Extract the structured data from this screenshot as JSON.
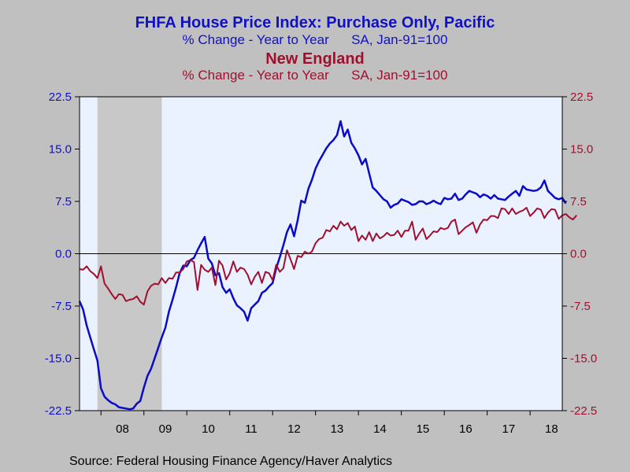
{
  "chart_data": {
    "type": "line",
    "title": "FHFA House Price Index: Purchase Only, Pacific",
    "subtitle": "% Change - Year to Year      SA, Jan-91=100",
    "title2": "New England",
    "subtitle2": "% Change - Year to Year      SA, Jan-91=100",
    "source": "Source:  Federal Housing Finance Agency/Haver Analytics",
    "ylim": [
      -22.5,
      22.5
    ],
    "yticks_left": [
      "22.5",
      "15.0",
      "7.5",
      "0.0",
      "-7.5",
      "-15.0",
      "-22.5"
    ],
    "yticks_right": [
      "22.5",
      "15.0",
      "7.5",
      "0.0",
      "-7.5",
      "-15.0",
      "-22.5"
    ],
    "ytick_values": [
      22.5,
      15.0,
      7.5,
      0.0,
      -7.5,
      -15.0,
      -22.5
    ],
    "xticks": [
      "08",
      "09",
      "10",
      "11",
      "12",
      "13",
      "14",
      "15",
      "16",
      "17",
      "18"
    ],
    "xlim": [
      "2007-07",
      "2018-10"
    ],
    "recession": [
      "2007-12",
      "2009-06"
    ],
    "grid": false,
    "colors": {
      "pacific": "#0a0ac8",
      "new_england": "#a0102e",
      "plot_bg": "#eaf2ff",
      "recession": "#c8c8c8"
    },
    "series": [
      {
        "name": "Pacific",
        "axis": "left",
        "start": "2007-07",
        "values": [
          -6.8,
          -8.0,
          -10.3,
          -12.0,
          -13.7,
          -15.3,
          -19.3,
          -20.5,
          -21.0,
          -21.4,
          -21.6,
          -22.0,
          -22.1,
          -22.2,
          -22.3,
          -22.2,
          -21.5,
          -21.1,
          -19.2,
          -17.5,
          -16.5,
          -15.0,
          -13.5,
          -12.0,
          -10.6,
          -8.3,
          -6.6,
          -4.8,
          -2.8,
          -1.7,
          -1.8,
          -0.9,
          -0.6,
          0.5,
          1.5,
          2.4,
          -0.7,
          -1.4,
          -3.1,
          -2.8,
          -4.8,
          -5.6,
          -5.1,
          -6.4,
          -7.4,
          -7.8,
          -8.3,
          -9.6,
          -7.8,
          -7.3,
          -6.8,
          -5.6,
          -5.3,
          -4.7,
          -4.2,
          -2.1,
          -0.5,
          1.2,
          3.1,
          4.2,
          2.5,
          4.8,
          7.6,
          7.3,
          9.3,
          10.6,
          12.2,
          13.3,
          14.2,
          15.1,
          15.8,
          16.3,
          17.0,
          19.0,
          16.8,
          17.8,
          15.9,
          15.1,
          14.1,
          12.8,
          13.6,
          11.5,
          9.5,
          9.0,
          8.4,
          7.8,
          7.5,
          6.6,
          7.0,
          7.2,
          7.8,
          7.6,
          7.4,
          7.0,
          7.1,
          7.5,
          7.5,
          7.1,
          7.3,
          7.6,
          7.3,
          7.1,
          8.0,
          7.8,
          7.9,
          8.6,
          7.7,
          7.9,
          8.5,
          9.0,
          8.8,
          8.6,
          8.1,
          8.5,
          8.3,
          7.9,
          8.4,
          7.9,
          7.8,
          7.7,
          8.2,
          8.6,
          9.0,
          8.3,
          9.7,
          9.2,
          9.1,
          9.0,
          9.1,
          9.5,
          10.5,
          9.0,
          8.5,
          8.0,
          7.8,
          8.0,
          7.2
        ]
      },
      {
        "name": "New England",
        "axis": "right",
        "start": "2007-07",
        "values": [
          -2.2,
          -2.3,
          -1.8,
          -2.5,
          -2.9,
          -3.5,
          -1.8,
          -4.3,
          -5.0,
          -5.8,
          -6.5,
          -5.8,
          -5.9,
          -6.8,
          -6.6,
          -6.5,
          -6.1,
          -6.9,
          -7.3,
          -5.4,
          -4.6,
          -4.3,
          -4.4,
          -3.5,
          -4.2,
          -3.5,
          -3.6,
          -2.7,
          -2.7,
          -2.2,
          -1.1,
          -0.9,
          -1.2,
          -5.2,
          -1.6,
          -2.3,
          -2.6,
          -2.0,
          -4.5,
          -1.0,
          -1.7,
          -3.7,
          -2.8,
          -1.1,
          -2.6,
          -2.0,
          -2.2,
          -3.0,
          -4.4,
          -3.3,
          -2.6,
          -4.2,
          -2.6,
          -2.8,
          -3.8,
          -1.6,
          -2.6,
          -2.1,
          0.5,
          -0.8,
          -2.2,
          -0.3,
          -0.5,
          0.3,
          0.0,
          0.3,
          1.5,
          2.1,
          2.3,
          3.4,
          3.2,
          4.0,
          3.5,
          4.6,
          4.0,
          4.4,
          3.4,
          3.9,
          1.8,
          2.6,
          2.0,
          3.1,
          1.8,
          2.9,
          2.2,
          2.5,
          3.0,
          2.6,
          2.7,
          3.3,
          2.4,
          3.3,
          3.3,
          4.6,
          2.0,
          2.9,
          3.6,
          2.1,
          2.6,
          3.2,
          3.1,
          3.7,
          3.5,
          3.7,
          4.6,
          4.9,
          2.8,
          3.3,
          3.8,
          4.1,
          4.5,
          3.0,
          4.2,
          4.9,
          4.8,
          5.4,
          5.4,
          5.1,
          6.5,
          6.4,
          5.7,
          6.5,
          5.7,
          6.0,
          6.2,
          6.6,
          5.4,
          5.9,
          6.5,
          6.3,
          5.1,
          5.9,
          6.4,
          6.3,
          5.0,
          5.5,
          5.7,
          5.2,
          4.9,
          5.5
        ]
      }
    ]
  }
}
